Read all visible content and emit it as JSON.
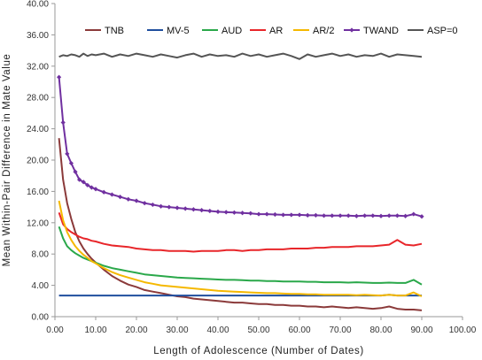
{
  "chart_data": {
    "type": "line",
    "xlabel": "Length  of  Adolescence  (Number of Dates)",
    "ylabel": "Mean  Within-Pair  Difference  in  Mate  Value",
    "xlim": [
      0,
      100
    ],
    "ylim": [
      0,
      40
    ],
    "x_ticks": [
      "0.00",
      "10.00",
      "20.00",
      "30.00",
      "40.00",
      "50.00",
      "60.00",
      "70.00",
      "80.00",
      "90.00",
      "100.00"
    ],
    "y_ticks": [
      "0.00",
      "4.00",
      "8.00",
      "12.00",
      "16.00",
      "20.00",
      "24.00",
      "28.00",
      "32.00",
      "36.00",
      "40.00"
    ],
    "grid": false,
    "legend_position": "top",
    "x": [
      1,
      2,
      3,
      4,
      5,
      6,
      7,
      8,
      9,
      10,
      12,
      14,
      16,
      18,
      20,
      22,
      24,
      26,
      28,
      30,
      32,
      34,
      36,
      38,
      40,
      42,
      44,
      46,
      48,
      50,
      52,
      54,
      56,
      58,
      60,
      62,
      64,
      66,
      68,
      70,
      72,
      74,
      76,
      78,
      80,
      82,
      84,
      86,
      88,
      90
    ],
    "series": [
      {
        "name": "TNB",
        "color": "#8b3a3a",
        "marker": "none",
        "values": [
          22.8,
          17.5,
          14.5,
          12.5,
          10.8,
          9.6,
          8.7,
          8.0,
          7.4,
          6.9,
          6.0,
          5.2,
          4.6,
          4.1,
          3.8,
          3.4,
          3.2,
          3.0,
          2.8,
          2.6,
          2.5,
          2.3,
          2.2,
          2.1,
          2.0,
          1.9,
          1.8,
          1.8,
          1.7,
          1.6,
          1.6,
          1.5,
          1.5,
          1.4,
          1.4,
          1.3,
          1.3,
          1.2,
          1.3,
          1.2,
          1.1,
          1.2,
          1.1,
          1.0,
          1.1,
          1.3,
          1.0,
          0.9,
          0.9,
          0.8
        ]
      },
      {
        "name": "MV-5",
        "color": "#1f4e9e",
        "marker": "none",
        "values": [
          2.7,
          2.7,
          2.7,
          2.7,
          2.7,
          2.7,
          2.7,
          2.7,
          2.7,
          2.7,
          2.7,
          2.7,
          2.7,
          2.7,
          2.7,
          2.7,
          2.7,
          2.7,
          2.7,
          2.7,
          2.7,
          2.7,
          2.7,
          2.7,
          2.7,
          2.7,
          2.7,
          2.7,
          2.7,
          2.7,
          2.7,
          2.7,
          2.7,
          2.7,
          2.7,
          2.7,
          2.7,
          2.7,
          2.7,
          2.7,
          2.7,
          2.7,
          2.7,
          2.7,
          2.7,
          2.8,
          2.7,
          2.7,
          2.7,
          2.7
        ]
      },
      {
        "name": "AUD",
        "color": "#2aa84a",
        "marker": "none",
        "values": [
          11.5,
          10.0,
          9.0,
          8.5,
          8.1,
          7.8,
          7.5,
          7.3,
          7.1,
          6.9,
          6.5,
          6.2,
          6.0,
          5.8,
          5.6,
          5.4,
          5.3,
          5.2,
          5.1,
          5.0,
          4.95,
          4.9,
          4.85,
          4.8,
          4.75,
          4.7,
          4.7,
          4.65,
          4.6,
          4.6,
          4.55,
          4.55,
          4.5,
          4.5,
          4.5,
          4.45,
          4.45,
          4.4,
          4.4,
          4.4,
          4.35,
          4.4,
          4.35,
          4.3,
          4.3,
          4.35,
          4.3,
          4.3,
          4.7,
          4.1
        ]
      },
      {
        "name": "AR",
        "color": "#e8262a",
        "marker": "none",
        "values": [
          13.3,
          11.8,
          11.2,
          10.8,
          10.5,
          10.2,
          10.0,
          9.9,
          9.7,
          9.6,
          9.3,
          9.1,
          9.0,
          8.9,
          8.7,
          8.6,
          8.5,
          8.5,
          8.4,
          8.4,
          8.4,
          8.3,
          8.4,
          8.4,
          8.4,
          8.5,
          8.5,
          8.4,
          8.5,
          8.5,
          8.6,
          8.6,
          8.6,
          8.7,
          8.7,
          8.7,
          8.8,
          8.8,
          8.9,
          8.9,
          8.9,
          9.0,
          9.0,
          9.0,
          9.1,
          9.2,
          9.8,
          9.2,
          9.1,
          9.3
        ]
      },
      {
        "name": "AR/2",
        "color": "#f5b800",
        "marker": "none",
        "values": [
          14.8,
          12.3,
          10.8,
          9.8,
          9.0,
          8.4,
          7.9,
          7.5,
          7.1,
          6.8,
          6.2,
          5.7,
          5.3,
          5.0,
          4.7,
          4.4,
          4.2,
          4.0,
          3.9,
          3.8,
          3.7,
          3.6,
          3.5,
          3.4,
          3.3,
          3.25,
          3.2,
          3.15,
          3.1,
          3.05,
          3.0,
          3.0,
          2.95,
          2.9,
          2.9,
          2.85,
          2.85,
          2.8,
          2.8,
          2.8,
          2.8,
          2.75,
          2.8,
          2.75,
          2.7,
          2.8,
          2.7,
          2.7,
          3.1,
          2.6
        ]
      },
      {
        "name": "TWAND",
        "color": "#7030a0",
        "marker": "diamond",
        "values": [
          30.6,
          24.8,
          20.8,
          19.6,
          18.5,
          17.5,
          17.2,
          16.8,
          16.5,
          16.3,
          15.9,
          15.6,
          15.3,
          15.0,
          14.8,
          14.5,
          14.3,
          14.1,
          14.0,
          13.9,
          13.8,
          13.7,
          13.6,
          13.5,
          13.4,
          13.35,
          13.3,
          13.25,
          13.2,
          13.1,
          13.1,
          13.05,
          13.0,
          13.0,
          13.0,
          12.95,
          12.95,
          12.9,
          12.9,
          12.9,
          12.9,
          12.85,
          12.9,
          12.9,
          12.85,
          12.9,
          12.9,
          12.85,
          13.1,
          12.8
        ]
      },
      {
        "name": "ASP=0",
        "color": "#555555",
        "marker": "none",
        "values": [
          33.2,
          33.4,
          33.3,
          33.5,
          33.4,
          33.2,
          33.6,
          33.3,
          33.5,
          33.4,
          33.6,
          33.2,
          33.5,
          33.3,
          33.6,
          33.4,
          33.2,
          33.5,
          33.3,
          33.1,
          33.4,
          33.6,
          33.2,
          33.5,
          33.3,
          33.4,
          33.2,
          33.6,
          33.3,
          33.5,
          33.2,
          33.4,
          33.6,
          33.3,
          32.9,
          33.5,
          33.2,
          33.4,
          33.6,
          33.3,
          33.5,
          33.2,
          33.4,
          33.3,
          33.6,
          33.2,
          33.5,
          33.4,
          33.3,
          33.2
        ]
      }
    ]
  }
}
